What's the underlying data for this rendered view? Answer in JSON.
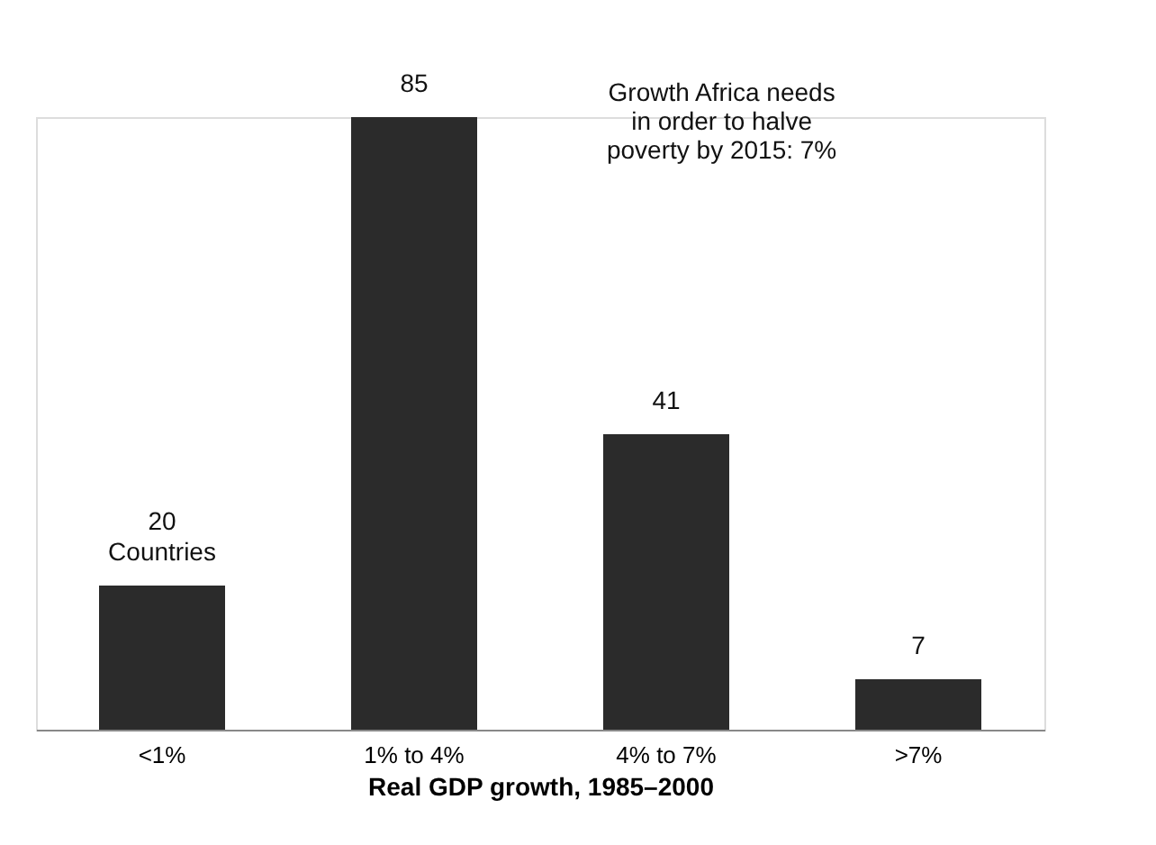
{
  "chart_data": {
    "type": "bar",
    "categories": [
      "<1%",
      "1% to 4%",
      "4% to 7%",
      ">7%"
    ],
    "values": [
      20,
      85,
      41,
      7
    ],
    "value_labels": [
      "20 Countries",
      "85",
      "41",
      "7"
    ],
    "color": "#2b2b2b",
    "xlabel": "Real GDP growth, 1985–2000",
    "annotations": [
      "Growth Africa needs in order to halve poverty by 2015: 7%"
    ]
  }
}
